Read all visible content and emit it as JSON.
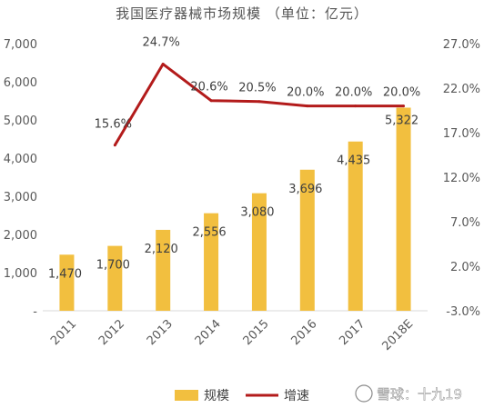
{
  "chart_data": {
    "type": "bar",
    "title": "我国医疗器械市场规模 （单位：亿元）",
    "categories": [
      "2011",
      "2012",
      "2013",
      "2014",
      "2015",
      "2016",
      "2017",
      "2018E"
    ],
    "series": [
      {
        "name": "规模",
        "type": "bar",
        "axis": "left",
        "color": "#f2bf3f",
        "values": [
          1470,
          1700,
          2120,
          2556,
          3080,
          3696,
          4435,
          5322
        ],
        "labels": [
          "1,470",
          "1,700",
          "2,120",
          "2,556",
          "3,080",
          "3,696",
          "4,435",
          "5,322"
        ]
      },
      {
        "name": "增速",
        "type": "line",
        "axis": "right",
        "color": "#b31b1b",
        "values": [
          null,
          15.6,
          24.7,
          20.6,
          20.5,
          20.0,
          20.0,
          20.0
        ],
        "labels": [
          "",
          "15.6%",
          "24.7%",
          "20.6%",
          "20.5%",
          "20.0%",
          "20.0%",
          "20.0%"
        ]
      }
    ],
    "left_axis": {
      "range": [
        0,
        7000
      ],
      "ticks": [
        0,
        1000,
        2000,
        3000,
        4000,
        5000,
        6000,
        7000
      ],
      "tick_labels": [
        "-",
        "1,000",
        "2,000",
        "3,000",
        "4,000",
        "5,000",
        "6,000",
        "7,000"
      ]
    },
    "right_axis": {
      "range": [
        -3.0,
        27.0
      ],
      "ticks": [
        -3.0,
        2.0,
        7.0,
        12.0,
        17.0,
        22.0,
        27.0
      ],
      "tick_labels": [
        "-3.0%",
        "2.0%",
        "7.0%",
        "12.0%",
        "17.0%",
        "22.0%",
        "27.0%"
      ]
    },
    "grid": false,
    "legend_position": "bottom"
  },
  "watermark": {
    "text": "雪球：十九19",
    "icon": "snowball-logo-icon"
  }
}
